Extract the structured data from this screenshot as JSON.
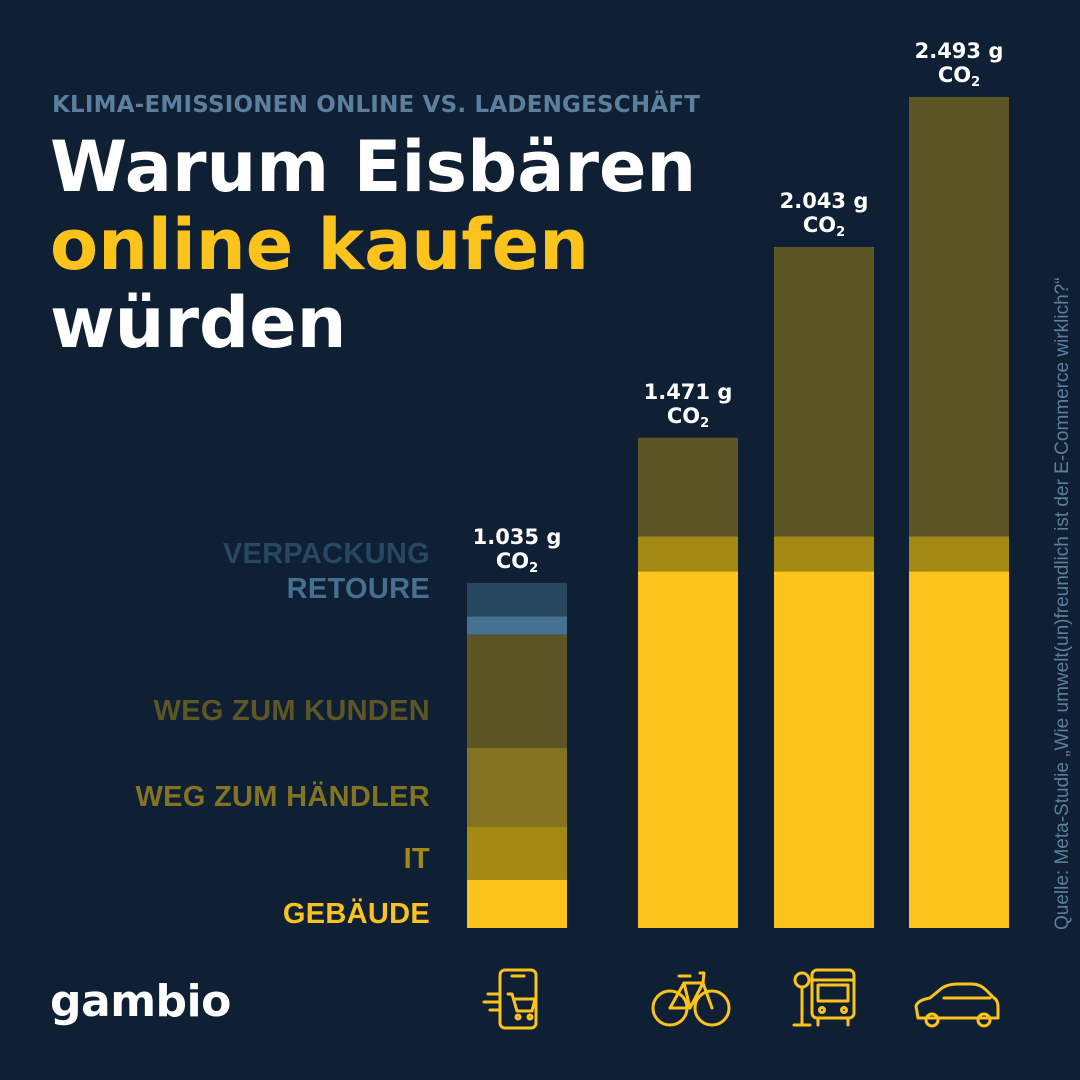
{
  "header": {
    "kicker": "KLIMA-EMISSIONEN ONLINE VS. LADENGESCHÄFT",
    "title_line1": "Warum Eisbären",
    "title_line2": "online kaufen",
    "title_line3": "würden"
  },
  "source": "Quelle: Meta-Studie „Wie umwelt(un)freundlich ist der E-Commerce wirklich?“",
  "logo": "gambio",
  "icons": [
    "smartphone-cart-icon",
    "bicycle-icon",
    "bus-stop-icon",
    "car-icon"
  ],
  "colors": {
    "background": "#0f2034",
    "accent": "#fbc31b",
    "gebaeude": "#fbc31b",
    "it": "#a48814",
    "weg_zum_haendler": "#837322",
    "weg_zum_kunden": "#5c5624",
    "retoure": "#45708f",
    "verpackung": "#274860"
  },
  "chart_data": {
    "type": "bar",
    "stacked": true,
    "unit": "g CO2",
    "categories": [
      "Online",
      "Ladengeschäft per Rad",
      "Ladengeschäft per Bus",
      "Ladengeschäft per Auto"
    ],
    "totals": [
      1035,
      1471,
      2043,
      2493
    ],
    "total_labels": [
      "1.035 g",
      "1.471 g",
      "2.043 g",
      "2.493 g"
    ],
    "total_unit": "CO",
    "total_unit_sub": "2",
    "series": [
      {
        "name": "GEBÄUDE",
        "key": "gebaeude",
        "values": [
          145,
          1070,
          1070,
          1070
        ]
      },
      {
        "name": "IT",
        "key": "it",
        "values": [
          160,
          105,
          105,
          105
        ]
      },
      {
        "name": "WEG ZUM HÄNDLER",
        "key": "weg_zum_haendler",
        "values": [
          235,
          0,
          0,
          0
        ]
      },
      {
        "name": "WEG ZUM KUNDEN",
        "key": "weg_zum_kunden",
        "values": [
          340,
          296,
          868,
          1318
        ]
      },
      {
        "name": "RETOURE",
        "key": "retoure",
        "values": [
          55,
          0,
          0,
          0
        ]
      },
      {
        "name": "VERPACKUNG",
        "key": "verpackung",
        "values": [
          100,
          0,
          0,
          0
        ]
      }
    ],
    "ylim": [
      0,
      2493
    ]
  }
}
